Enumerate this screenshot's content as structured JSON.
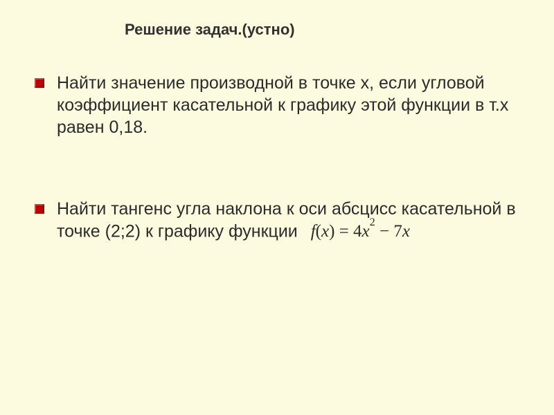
{
  "background_color": "#fdfbdf",
  "bullet_color": "#bf0000",
  "text_color": "#2b2b2b",
  "title_color": "#333030",
  "title": {
    "text": "Решение задач.(устно)",
    "fontsize": 22,
    "weight": "bold"
  },
  "bullets": [
    {
      "text": "Найти значение производной в точке х, если угловой коэффициент касательной к графику этой функции в т.х равен 0,18.",
      "fontsize": 25
    },
    {
      "text": " Найти тангенс угла наклона к оси абсцисс касательной в точке (2;2) к графику функции",
      "fontsize": 25
    }
  ],
  "formula": {
    "lhs_fn": "f",
    "lhs_paren_open": "(",
    "lhs_var": "x",
    "lhs_paren_close": ")",
    "eq": " = ",
    "term1_coef": "4",
    "term1_var": "x",
    "term1_exp": "2",
    "op": " − ",
    "term2_coef": "7",
    "term2_var": "x",
    "fontsize": 25
  }
}
